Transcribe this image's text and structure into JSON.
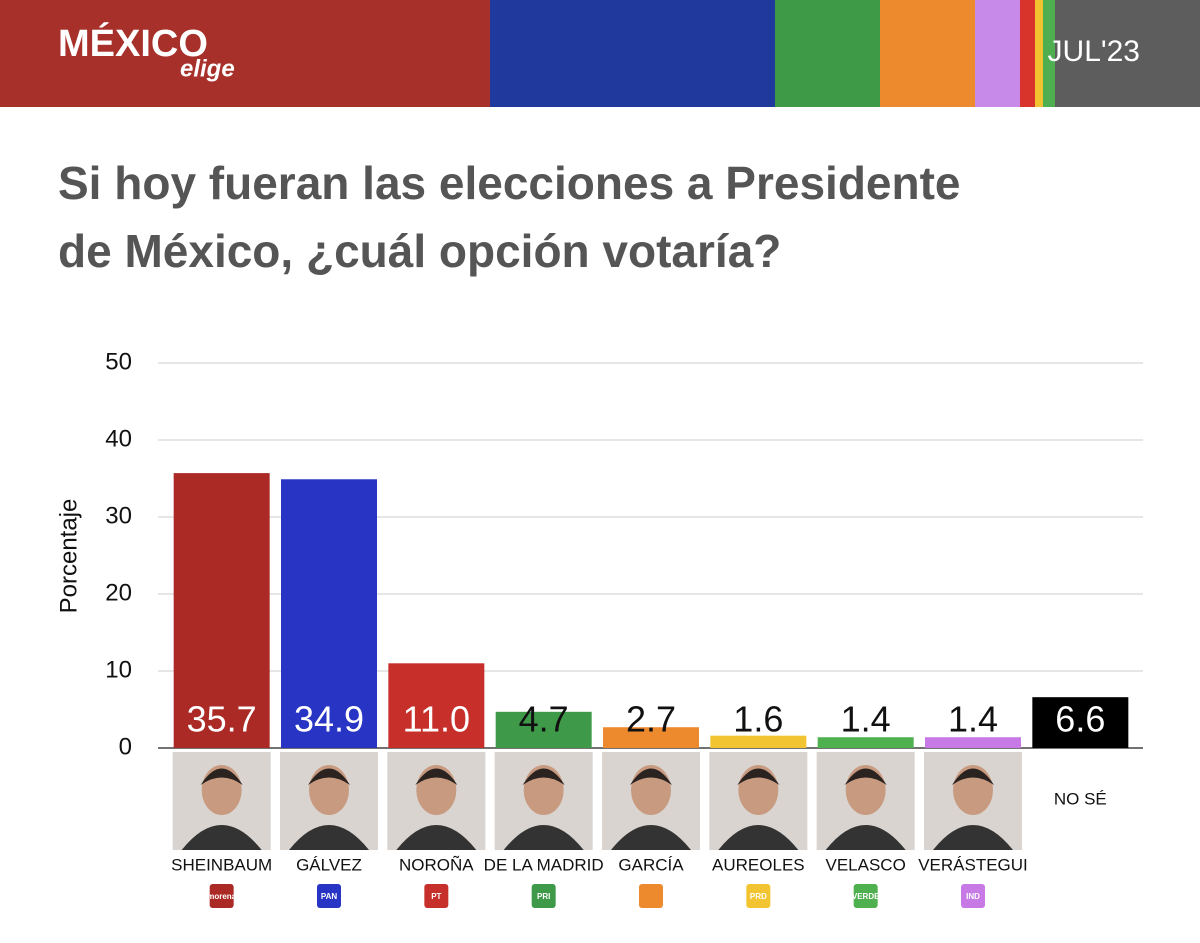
{
  "header": {
    "brand": "MÉXICO",
    "brand_sub": "elige",
    "date": "JUL'23"
  },
  "chart_data": {
    "type": "bar",
    "title": "Si hoy fueran las elecciones a Presidente",
    "title_line2": "de México, ¿cuál opción votaría?",
    "y_label": "Porcentaje",
    "categories": [
      "SHEINBAUM",
      "GÁLVEZ",
      "NOROÑA",
      "DE LA MADRID",
      "GARCÍA",
      "AUREOLES",
      "VELASCO",
      "VERÁSTEGUI",
      "NO SÉ"
    ],
    "parties": [
      "morena",
      "PAN",
      "PT",
      "PRI",
      null,
      "PRD",
      "VERDE",
      "IND",
      null
    ],
    "values": [
      35.7,
      34.9,
      11.0,
      4.7,
      2.7,
      1.6,
      1.4,
      1.4,
      6.6
    ],
    "value_labels": [
      "35.7",
      "34.9",
      "11.0",
      "4.7",
      "2.7",
      "1.6",
      "1.4",
      "1.4",
      "6.6"
    ],
    "colors": [
      "#ab2a26",
      "#2834c4",
      "#c7302a",
      "#3e9a48",
      "#ee8a2e",
      "#f3c431",
      "#4fb04f",
      "#c77ae6",
      "#000000"
    ],
    "ylim": [
      0,
      50
    ],
    "yticks": [
      0,
      10,
      20,
      30,
      40,
      50
    ],
    "grid": true
  }
}
